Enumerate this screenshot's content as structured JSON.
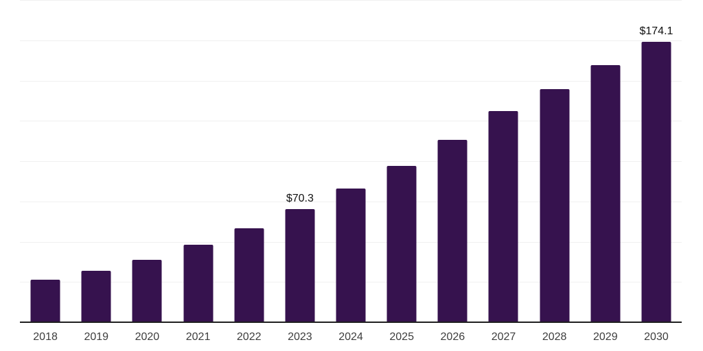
{
  "chart": {
    "bar_color": "#36124E",
    "axis_color": "#1F1F1F",
    "grid_color": "#F0F0F0",
    "tick_label_color": "#3D3D3D",
    "data_label_color": "#101010",
    "background_color": "#FFFFFF"
  },
  "chart_data": {
    "type": "bar",
    "title": "",
    "xlabel": "",
    "ylabel": "",
    "categories": [
      "2018",
      "2019",
      "2020",
      "2021",
      "2022",
      "2023",
      "2024",
      "2025",
      "2026",
      "2027",
      "2028",
      "2029",
      "2030"
    ],
    "values": [
      26.3,
      31.9,
      38.9,
      48.0,
      58.2,
      70.3,
      83.0,
      97.2,
      113.2,
      131.2,
      144.7,
      159.6,
      174.1
    ],
    "data_labels": {
      "2023": "$70.3",
      "2030": "$174.1"
    },
    "ylim": [
      0,
      200
    ],
    "gridline_step": 25,
    "grid": true,
    "legend_position": "none",
    "y_axis_labels_visible": false
  }
}
